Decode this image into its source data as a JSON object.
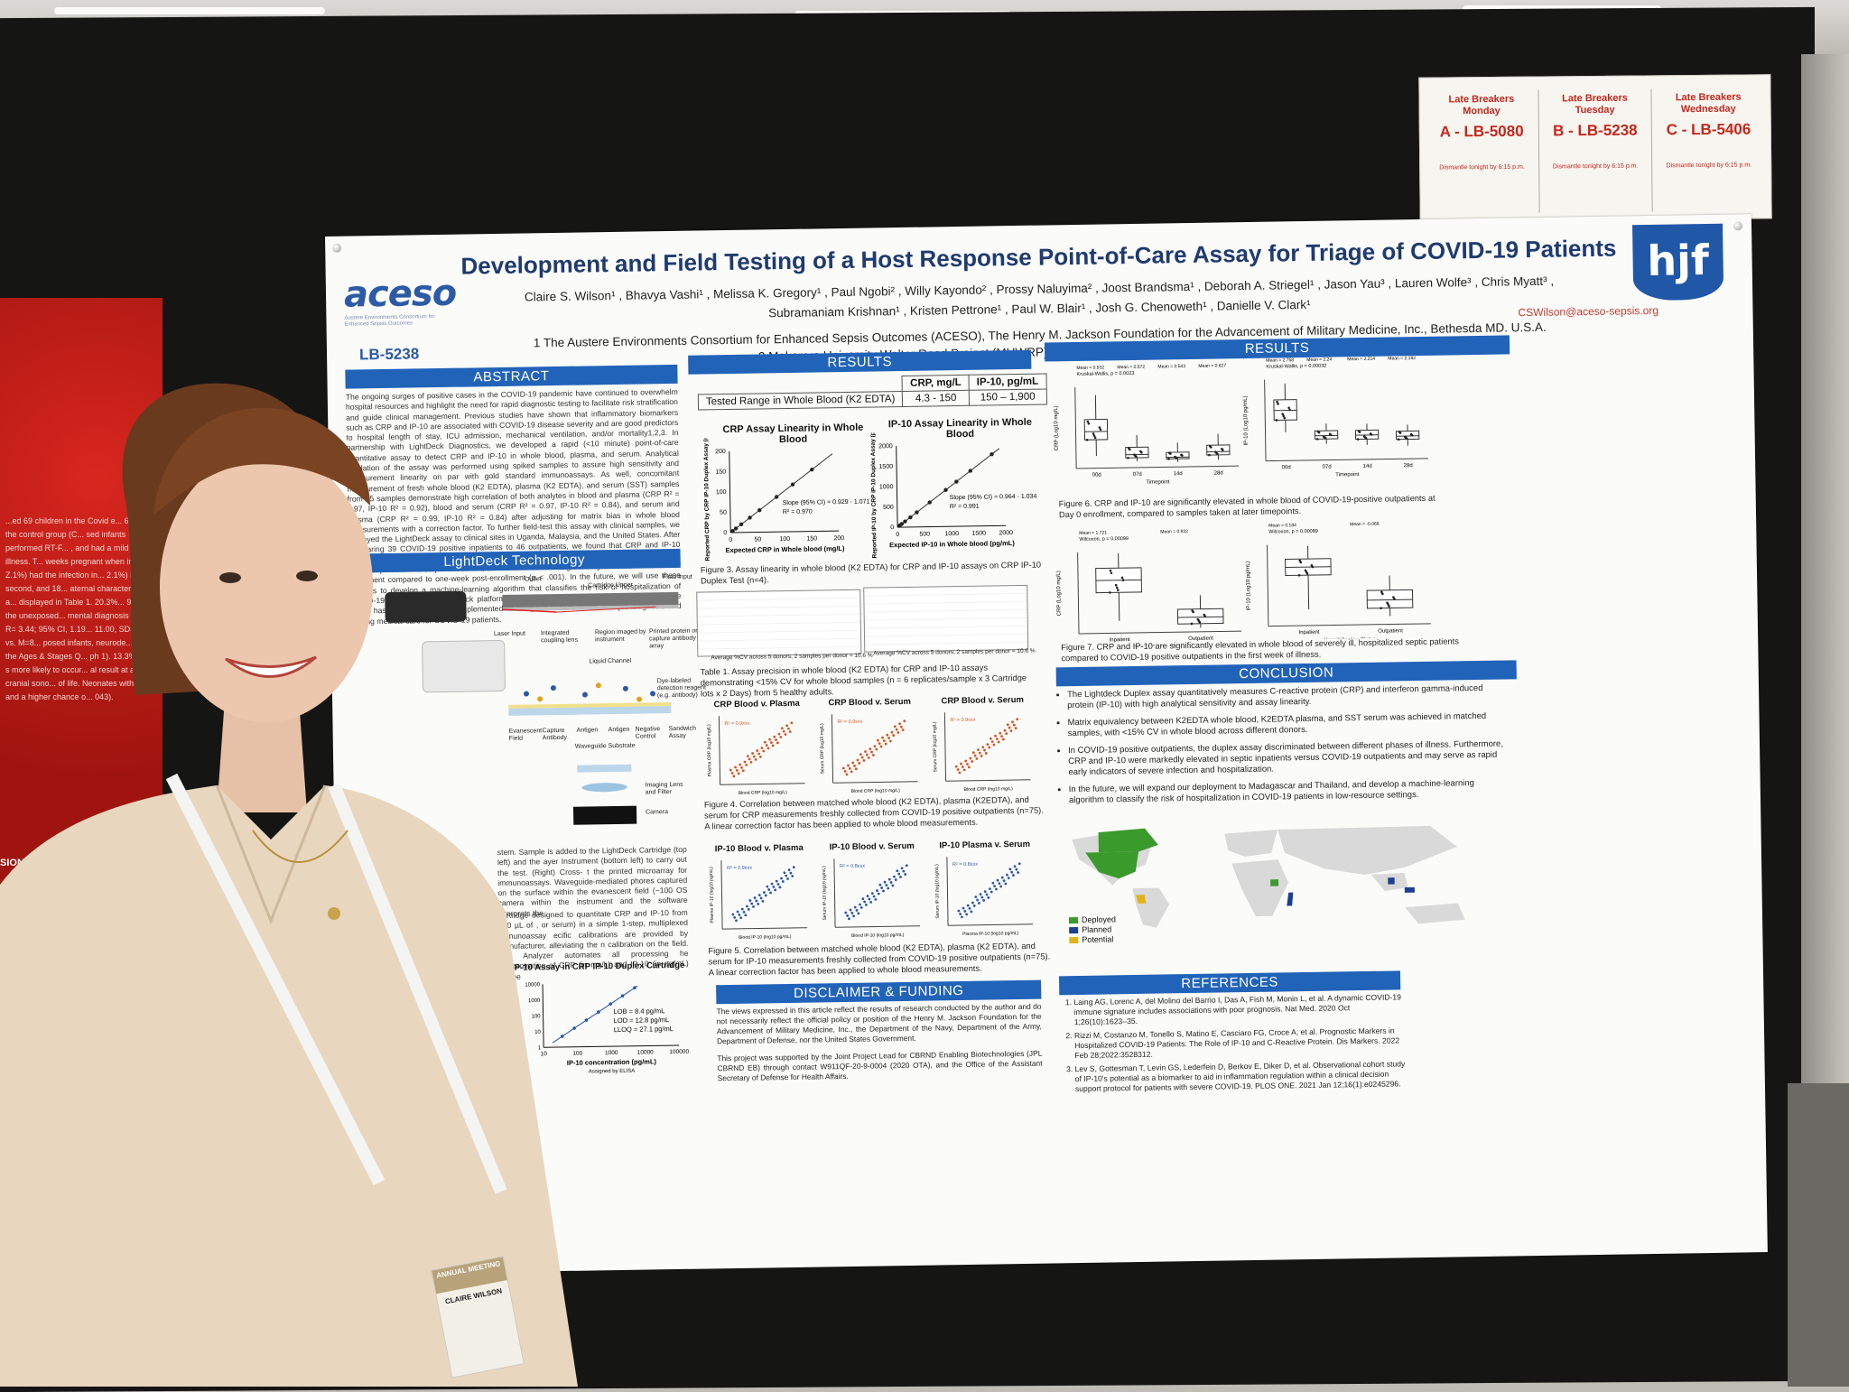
{
  "late_breakers": [
    {
      "head": "Late Breakers\nMonday",
      "code": "A - LB-5080",
      "note": "Dismantle tonight by 6:15 p.m."
    },
    {
      "head": "Late Breakers\nTuesday",
      "code": "B - LB-5238",
      "note": "Dismantle tonight by 6:15 p.m."
    },
    {
      "head": "Late Breakers\nWednesday",
      "code": "C - LB-5406",
      "note": "Dismantle tonight by 6:15 p.m."
    }
  ],
  "neighbor_poster": {
    "text": "...ed 69 children in the Covid e... 68 in the control group (C... sed infants performed RT-F... , and had a mild illness. T... weeks pregnant when inf... Z.1%) had the infection in... 2.1%) in the second, and 18... aternal characteristics a... displayed in Table 1. 20.3%... 9% of the unexposed... mental diagnosis with... R= 3.44; 95% CI, 1.19... 11.00, SD=6.00 vs. M=8... posed infants, neurode... ring the Ages & Stages Q... ph 1). 13.3% of ... s more likely to occur... al result at a cranial sono... of life. Neonates with... and a higher chance o... 043).",
    "heading": "SIONS A"
  },
  "poster": {
    "logo_left": "aceso",
    "logo_left_tag": "Austere Environments Consortium for Enhanced Sepsis Outcomes",
    "logo_right": "hjf",
    "id": "LB-5238",
    "title": "Development and Field Testing of a Host Response Point-of-Care Assay for Triage of COVID-19 Patients",
    "authors_1": "Claire S. Wilson¹ , Bhavya Vashi¹ , Melissa K. Gregory¹ , Paul Ngobi² , Willy Kayondo² , Prossy Naluyima² , Joost Brandsma¹ , Deborah A. Striegel¹ , Jason Yau³ , Lauren Wolfe³ , Chris Myatt³ ,",
    "authors_2": "Subramaniam Krishnan¹ , Kristen Pettrone¹ , Paul W. Blair¹ , Josh G. Chenoweth¹ , Danielle V. Clark¹",
    "affil_1": "1 The Austere Environments Consortium for Enhanced Sepsis Outcomes (ACESO), The Henry M. Jackson Foundation for the Advancement of Military Medicine, Inc., Bethesda MD. U.S.A.",
    "affil_2": "2 Makerere University Walter Reed Project (MUWRP), 3 Lightdeck Diagnostics, Inc., Boulder CO. U.S.A.",
    "email": "CSWilson@aceso-sepsis.org",
    "sections": {
      "abstract": "ABSTRACT",
      "lightdeck": "LightDeck Technology",
      "results_mid": "RESULTS",
      "results_right": "RESULTS",
      "conclusion": "CONCLUSION",
      "disclaimer": "DISCLAIMER & FUNDING",
      "references": "REFERENCES"
    },
    "abstract_text": "The ongoing surges of positive cases in the COVID-19 pandemic have continued to overwhelm hospital resources and highlight the need for rapid diagnostic testing to facilitate risk stratification and guide clinical management. Previous studies have shown that inflammatory biomarkers such as CRP and IP-10 are associated with COVID-19 disease severity and are good predictors to hospital length of stay, ICU admission, mechanical ventilation, and/or mortality1,2,3. In partnership with LightDeck Diagnostics, we developed a rapid (<10 minute) point-of-care quantitative assay to detect CRP and IP-10 in whole blood, plasma, and serum. Analytical validation of the assay was performed using spiked samples to assure high sensitivity and measurement linearity on par with gold standard immunoassays. As well, concomitant measurement of fresh whole blood (K2 EDTA), plasma (K2 EDTA), and serum (SST) samples from 75 samples demonstrate high correlation of both analytes in blood and plasma (CRP R² = 0.97, IP-10 R² = 0.92), blood and serum (CRP R² = 0.97, IP-10 R² = 0.84), and serum and plasma (CRP R² = 0.99, IP-10 R² = 0.84) after adjusting for matrix bias in whole blood measurements with a correction factor. To further field-test this assay with clinical samples, we deployed the LightDeck assay to clinical sites in Uganda, Malaysia, and the United States. After comparing 39 COVID-19 positive inpatients to 46 outpatients, we found that CRP and IP-10 serum concentrations were markedly elevated in hospitalized patients at the time of enrollment (p < .001). Within the outpatient cohort, CRP and IP-10 were significantly elevated at the time of enrollment compared to one-week post-enrollment (p < .001). In the future, we will use these markers to develop a machine-learning algorithm that classifies the risk of hospitalization of COVID-19 patients. The LightDeck platform, with its ability to measure biomarkers in whole blood, has the potential to be implemented at the point-of-care to aid in rapid diagnosis and triaging medical care for COVID-19 patients.",
    "lightdeck_labels": [
      "Outlet",
      "Cartridge Upper",
      "Fluid Input",
      "Laser Input",
      "Integrated coupling lens",
      "Region imaged by instrument",
      "Printed protein or capture antibody array",
      "Liquid Channel",
      "Dye-labeled detection reagent (e.g. antibody)",
      "Evanescent Field",
      "Capture Antibody",
      "Antigen",
      "Antigen",
      "Negative Control",
      "Sandwich Assay",
      "Waveguide Substrate",
      "Imaging Lens and Filter",
      "Camera"
    ],
    "lightdeck_caption_1": "stem. Sample is added to the LightDeck Cartridge (top left) and the ayer Instrument (bottom left) to carry out the test. (Right) Cross- t the printed microarray for immunoassays. Waveguide-mediated phores captured on the surface within the evanescent field (~100 OS camera within the instrument and the software interprets the",
    "lightdeck_caption_2": "cartridge designed to quantitate CRP and IP-10 from 100 µL of , or serum) in a simple 1-step, multiplexed immunoassay ecific calibrations are provided by manufacturer, alleviating the n calibration on the field. The Analyzer automates all processing he concentration of CRP (in mg/L) and IP-10 (in pg/mL) on the",
    "range_table": {
      "col1": "CRP, mg/L",
      "col2": "IP-10, pg/mL",
      "row_label": "Tested Range in Whole Blood (K2 EDTA)",
      "crp": "4.3 - 150",
      "ip10": "150 – 1,900"
    },
    "fig3_caption": "Figure 3. Assay linearity in whole blood (K2 EDTA) for CRP and IP-10 assays on CRP IP-10 Duplex Test (n=4).",
    "table1_caption": "Table 1. Assay precision in whole blood (K2 EDTA) for CRP and IP-10 assays demonstrating <15% CV for whole blood samples (n = 6 replicates/sample x 3 Cartridge lots x 2 Days) from 5 healthy adults.",
    "table1_footnotes": [
      "Average %CV across 5 donors, 2 samples per donor = 10.6 %",
      "Average %CV across 5 donors, 2 samples per donor = 10.6 %"
    ],
    "fig4_caption": "Figure 4. Correlation between matched whole blood (K2 EDTA), plasma (K2EDTA), and serum for CRP measurements freshly collected from COVID-19 positive outpatients (n=75). A linear correction factor has been applied to whole blood measurements.",
    "fig5_caption": "Figure 5. Correlation between matched whole blood (K2 EDTA), plasma (K2 EDTA), and serum for IP-10 measurements freshly collected from COVID-19 positive outpatients (n=75). A linear correction factor has been applied to whole blood measurements.",
    "fig6_caption": "Figure 6. CRP and IP-10 are significantly elevated in whole blood of COVID-19-positive outpatients at Day 0 enrollment, compared to samples taken at later timepoints.",
    "fig7_caption": "Figure 7. CRP and IP-10 are significantly elevated in whole blood of severely ill, hospitalized septic patients compared to COVID-19 positive outpatients in the first week of illness.",
    "conclusion": [
      "The Lightdeck Duplex assay quantitatively measures C-reactive protein (CRP) and interferon gamma-induced protein (IP-10) with high analytical sensitivity and assay linearity.",
      "Matrix equivalency between K2EDTA whole blood, K2EDTA plasma, and SST serum was achieved in matched samples, with <15% CV in whole blood across different donors.",
      "In COVID-19 positive outpatients, the duplex assay discriminated between different phases of illness. Furthermore, CRP and IP-10 were markedly elevated in septic inpatients versus COVID-19 outpatients and may serve as rapid early indicators of severe infection and hospitalization.",
      "In the future, we will expand our deployment to Madagascar and Thailand, and develop a machine-learning algorithm to classify the risk of hospitalization in COVID-19 patients in low-resource settings."
    ],
    "map_legend": [
      "Deployed",
      "Planned",
      "Potential"
    ],
    "map_colors": {
      "deployed": "#3a9a2c",
      "planned": "#1d3f8f",
      "potential": "#e0b418",
      "land": "#d9d9d9"
    },
    "disclaimer": [
      "The views expressed in this article reflect the results of research conducted by the author and do not necessarily reflect the official policy or position of the Henry M. Jackson Foundation for the Advancement of Military Medicine, Inc., the Department of the Navy, Department of the Army, Department of Defense, nor the United States Government.",
      "This project was supported by the Joint Project Lead for CBRND Enabling Biotechnologies (JPL CBRND EB) through contact W911QF-20-9-0004 (2020 OTA), and the Office of the Assistant Secretary of Defense for Health Affairs."
    ],
    "references": [
      "Laing AG, Lorenc A, del Molino del Barrio I, Das A, Fish M, Monin L, et al. A dynamic COVID-19 immune signature includes associations with poor prognosis. Nat Med. 2020 Oct 1;26(10):1623–35.",
      "Rizzi M, Costanzo M, Tonello S, Matino E, Casciaro FG, Croce A, et al. Prognostic Markers in Hospitalized COVID-19 Patients: The Role of IP-10 and C-Reactive Protein. Dis Markers. 2022 Feb 28;2022:3528312.",
      "Lev S, Gottesman T, Levin GS, Lederfein D, Berkov E, Diker D, et al. Observational cohort study of IP-10's potential as a biomarker to aid in inflammation regulation within a clinical decision support protocol for patients with severe COVID-19. PLOS ONE. 2021 Jan 12;16(1):e0245296."
    ],
    "charts": {
      "crp_lin": {
        "title": "CRP Assay Linearity in  Whole Blood",
        "xlabel": "Expected CRP in Whole blood (mg/L)",
        "ylabel": "Reported CRP by CRP IP-10 Duplex Assay (mg/L)",
        "xticks": [
          "0",
          "50",
          "100",
          "150",
          "200"
        ],
        "yticks": [
          "0",
          "50",
          "100",
          "150",
          "200"
        ],
        "slope": "Slope (95% CI) = 0.929 - 1.071",
        "r2": "R² = 0.970"
      },
      "ip10_lin": {
        "title": "IP-10 Assay Linearity in  Whole Blood",
        "xlabel": "Expected IP-10 in Whole blood (pg/mL)",
        "ylabel": "Reported IP-10 by CRP IP-10 Duplex Assay (pg/mL)",
        "xticks": [
          "0",
          "500",
          "1000",
          "1500",
          "2000"
        ],
        "yticks": [
          "0",
          "500",
          "1000",
          "1500",
          "2000"
        ],
        "slope": "Slope (95% CI) = 0.964 - 1.034",
        "r2": "R² = 0.991"
      },
      "ip10_cart": {
        "title": "IP-10 Assay in CRP IP-10 Duplex Cartridge",
        "xlabel": "IP-10 concentration (pg/mL)",
        "sublabel": "Assigned by ELISA",
        "ylabel": "Signal on Cartridge",
        "xticks": [
          "10",
          "100",
          "1000",
          "10000",
          "100000"
        ],
        "yticks": [
          "1",
          "10",
          "100",
          "1000",
          "10000"
        ],
        "lob": "LOB = 8.4 pg/mL",
        "lod": "LOD = 12.8 pg/mL",
        "lloq": "LLOQ = 27.1 pg/mL"
      },
      "crp_scatter": [
        {
          "title": "CRP Blood v. Plasma",
          "r2": "R² = 0.9xxx",
          "xlabel": "Blood CRP (log10 mg/L)",
          "ylabel": "Plasma CRP (log10 mg/L)"
        },
        {
          "title": "CRP Blood v. Serum",
          "r2": "R² = 0.9xxx",
          "xlabel": "Blood CRP (log10 mg/L)",
          "ylabel": "Serum CRP (log10 mg/L)"
        },
        {
          "title": "CRP Blood v. Serum",
          "r2": "R² = 0.9xxx",
          "xlabel": "Blood CRP (log10 mg/L)",
          "ylabel": "Serum CRP (log10 mg/L)"
        }
      ],
      "ip10_scatter": [
        {
          "title": "IP-10 Blood v. Plasma",
          "r2": "R² = 0.9xxx",
          "xlabel": "Blood IP-10 (log10 pg/mL)",
          "ylabel": "Plasma IP-10 (log10 pg/mL)"
        },
        {
          "title": "IP-10 Blood v. Serum",
          "r2": "R² = 0.8xxx",
          "xlabel": "Blood IP-10 (log10 pg/mL)",
          "ylabel": "Serum IP-10 (log10 pg/mL)"
        },
        {
          "title": "IP-10 Plasma v. Serum",
          "r2": "R² = 0.8xxx",
          "xlabel": "Plasma IP-10 (log10 pg/mL)",
          "ylabel": "Serum IP-10 (log10 pg/mL)"
        }
      ],
      "fig6": {
        "crp_means": [
          "Mean = 0.932",
          "Mean = 0.572",
          "Mean = 0.543",
          "Mean = 0.627"
        ],
        "crp_test": "Kruskal-Wallis, p = 0.0023",
        "ip10_means": [
          "Mean = 2.758",
          "Mean = 2.24",
          "Mean = 2.214",
          "Mean = 2.182"
        ],
        "ip10_test": "Kruskal-Wallis, p = 0.00032",
        "timepoints": [
          "00d",
          "07d",
          "14d",
          "28d"
        ],
        "xlabel": "Timepoint",
        "crp_ylabel": "CRP (Log10 mg/L)",
        "ip10_ylabel": "IP-10 (Log10 pg/mL)"
      },
      "fig7": {
        "crp_means": [
          "Mean = 1.721",
          "Mean = 0.932"
        ],
        "crp_test": "Wilcoxon, p = 0.00099",
        "ip10_means": [
          "Mean = 0.184",
          "Mean = -0.068"
        ],
        "ip10_test": "Wilcoxon, p = 0.00089",
        "groups": [
          "Inpatient",
          "Outpatient"
        ],
        "xlabel": "Hospitalization Status"
      }
    }
  },
  "badge": {
    "event": "ANNUAL MEETING",
    "name": "CLAIRE WILSON"
  }
}
